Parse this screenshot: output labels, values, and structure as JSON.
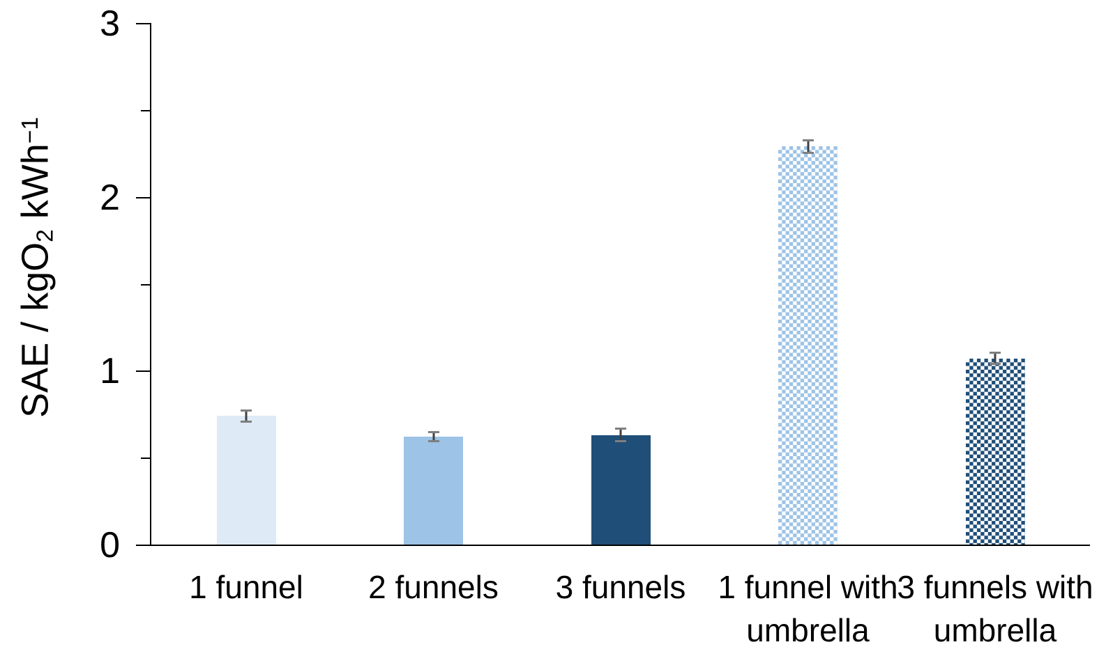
{
  "chart_data": {
    "type": "bar",
    "title": "",
    "xlabel": "",
    "ylabel_text": "SAE / kgO2 kWh-1",
    "ylabel": {
      "pre": "SAE / kgO",
      "sub": "2",
      "mid": " kWh",
      "sup": "−1"
    },
    "categories": [
      "1 funnel",
      "2 funnels",
      "3 funnels",
      "1 funnel with umbrella",
      "3 funnels with umbrella"
    ],
    "category_lines": [
      [
        "1 funnel"
      ],
      [
        "2 funnels"
      ],
      [
        "3 funnels"
      ],
      [
        "1 funnel with",
        "umbrella"
      ],
      [
        "3 funnels with",
        "umbrella"
      ]
    ],
    "values": [
      0.74,
      0.62,
      0.63,
      2.29,
      1.07
    ],
    "errors": [
      0.03,
      0.025,
      0.035,
      0.035,
      0.03
    ],
    "ylim": [
      0,
      3
    ],
    "yticks_major": [
      0,
      1,
      2,
      3
    ],
    "yticks_minor": [
      0.5,
      1.5,
      2.5
    ],
    "grid": false,
    "legend": "none",
    "bar_styles": [
      {
        "fill": "solid",
        "color": "#DEEAF6"
      },
      {
        "fill": "solid",
        "color": "#9DC3E6"
      },
      {
        "fill": "solid",
        "color": "#1F4E79"
      },
      {
        "fill": "checker",
        "color": "#9DC3E6"
      },
      {
        "fill": "checker",
        "color": "#1F4E79"
      }
    ],
    "axis_color": "#000000",
    "error_bar_color": "#595959"
  }
}
